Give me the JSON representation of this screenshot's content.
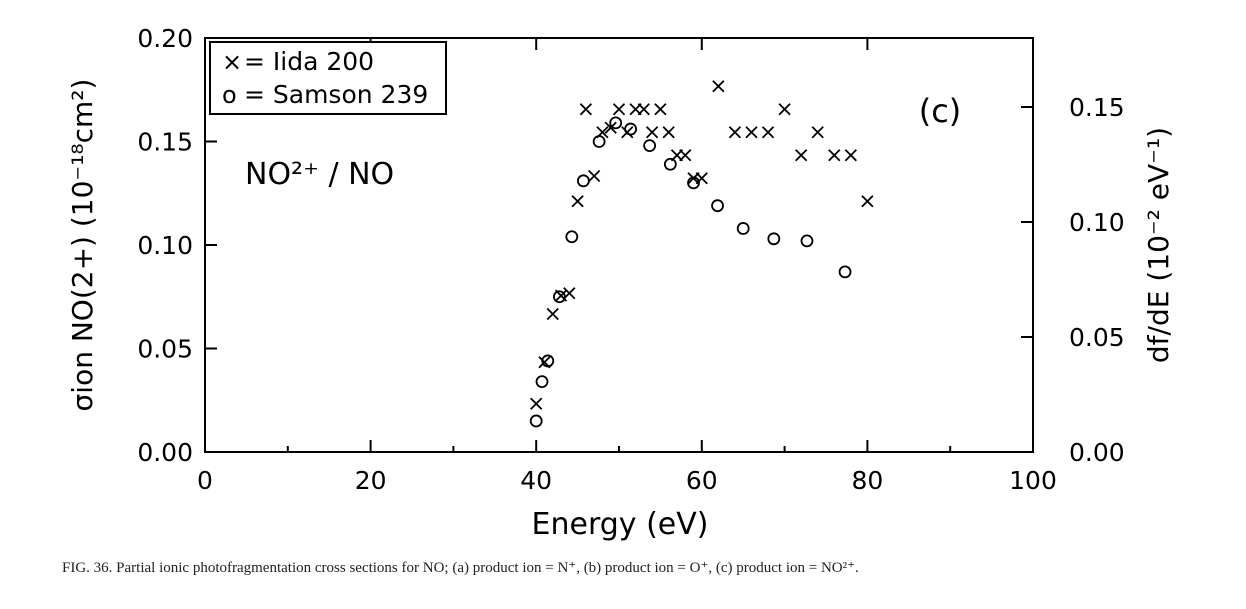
{
  "chart_data": {
    "type": "scatter",
    "panel_label": "(c)",
    "annotation": "NO²⁺ / NO",
    "xlabel": "Energy (eV)",
    "ylabel_left": "σion NO(2+) (10⁻¹⁸cm²)",
    "ylabel_right": "df/dE (10⁻² eV⁻¹)",
    "xlim": [
      0,
      100
    ],
    "ylim_left": [
      0,
      0.2
    ],
    "ylim_right": [
      0,
      0.18
    ],
    "x_ticks": [
      "0",
      "20",
      "40",
      "60",
      "80",
      "100"
    ],
    "y_ticks_left": [
      "0.00",
      "0.05",
      "0.10",
      "0.15",
      "0.20"
    ],
    "y_ticks_right": [
      "0.00",
      "0.05",
      "0.10",
      "0.15"
    ],
    "grid": false,
    "legend_position": "top-left",
    "series": [
      {
        "name": "Iida 200",
        "legend_label": "= Iida 200",
        "marker": "x",
        "axis": "right",
        "points": [
          [
            40,
            0.021
          ],
          [
            41,
            0.039
          ],
          [
            42,
            0.06
          ],
          [
            43,
            0.068
          ],
          [
            44,
            0.069
          ],
          [
            45,
            0.109
          ],
          [
            46,
            0.149
          ],
          [
            47,
            0.12
          ],
          [
            48,
            0.139
          ],
          [
            49,
            0.141
          ],
          [
            50,
            0.149
          ],
          [
            51,
            0.139
          ],
          [
            52,
            0.149
          ],
          [
            53,
            0.149
          ],
          [
            54,
            0.139
          ],
          [
            55,
            0.149
          ],
          [
            56,
            0.139
          ],
          [
            57,
            0.129
          ],
          [
            58,
            0.129
          ],
          [
            59,
            0.119
          ],
          [
            60,
            0.119
          ],
          [
            62,
            0.159
          ],
          [
            64,
            0.139
          ],
          [
            66,
            0.139
          ],
          [
            68,
            0.139
          ],
          [
            70,
            0.149
          ],
          [
            72,
            0.129
          ],
          [
            74,
            0.139
          ],
          [
            76,
            0.129
          ],
          [
            78,
            0.129
          ],
          [
            80,
            0.109
          ]
        ]
      },
      {
        "name": "Samson 239",
        "legend_label": "= Samson 239",
        "marker": "o",
        "axis": "left",
        "points": [
          [
            40,
            0.015
          ],
          [
            40.7,
            0.034
          ],
          [
            41.4,
            0.044
          ],
          [
            42.8,
            0.075
          ],
          [
            44.3,
            0.104
          ],
          [
            45.7,
            0.131
          ],
          [
            47.6,
            0.15
          ],
          [
            49.6,
            0.159
          ],
          [
            51.4,
            0.156
          ],
          [
            53.7,
            0.148
          ],
          [
            56.2,
            0.139
          ],
          [
            59.0,
            0.13
          ],
          [
            61.9,
            0.119
          ],
          [
            65.0,
            0.108
          ],
          [
            68.7,
            0.103
          ],
          [
            72.7,
            0.102
          ],
          [
            77.3,
            0.087
          ]
        ]
      }
    ]
  },
  "legend": {
    "x_symbol": "×",
    "x_label": "= Iida 200",
    "o_symbol": "o",
    "o_label": "= Samson 239"
  },
  "caption": "FIG. 36. Partial ionic photofragmentation cross sections for NO; (a) product ion = N⁺, (b) product ion = O⁺, (c) product ion = NO²⁺."
}
